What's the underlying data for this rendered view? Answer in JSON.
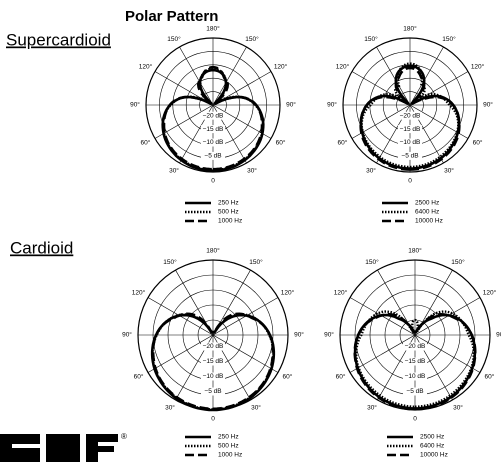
{
  "title": "Polar Pattern",
  "angle_labels": [
    "0",
    "30°",
    "60°",
    "90°",
    "120°",
    "150°",
    "180°"
  ],
  "db_labels": [
    "−20 dB",
    "−15 dB",
    "−10 dB",
    "−5 dB"
  ],
  "sections": [
    {
      "label": "Supercardioid",
      "plots": [
        {
          "legend": [
            "250 Hz",
            "500 Hz",
            "1000 Hz"
          ]
        },
        {
          "legend": [
            "2500 Hz",
            "6400 Hz",
            "10000 Hz"
          ]
        }
      ]
    },
    {
      "label": "Cardioid",
      "plots": [
        {
          "legend": [
            "250 Hz",
            "500 Hz",
            "1000 Hz"
          ]
        },
        {
          "legend": [
            "2500 Hz",
            "6400 Hz",
            "10000 Hz"
          ]
        }
      ]
    }
  ]
}
